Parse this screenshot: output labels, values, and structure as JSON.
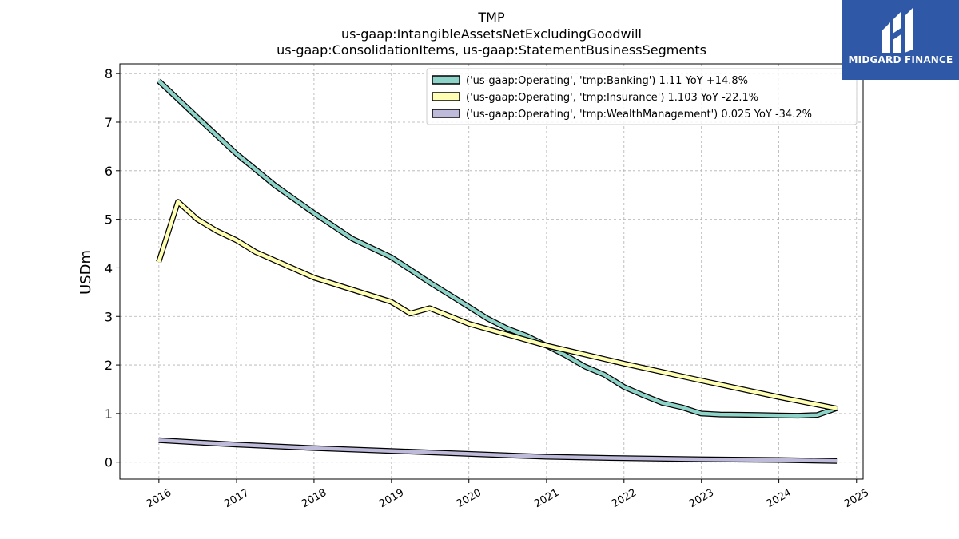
{
  "chart_data": {
    "type": "line",
    "title_lines": [
      "TMP",
      "us-gaap:IntangibleAssetsNetExcludingGoodwill",
      "us-gaap:ConsolidationItems, us-gaap:StatementBusinessSegments"
    ],
    "xlabel": "",
    "ylabel": "USDm",
    "xlim": [
      "2015-07-01",
      "2025-02-01"
    ],
    "ylim": [
      -0.35,
      8.2
    ],
    "x_ticks": [
      "2016",
      "2017",
      "2018",
      "2019",
      "2020",
      "2021",
      "2022",
      "2023",
      "2024",
      "2025"
    ],
    "y_ticks": [
      0,
      1,
      2,
      3,
      4,
      5,
      6,
      7,
      8
    ],
    "grid": true,
    "legend_position": "top-right",
    "series": [
      {
        "name": "('us-gaap:Operating', 'tmp:Banking') 1.11 YoY +14.8%",
        "color": "#8dd3c7",
        "points": [
          [
            "2015-12-31",
            7.85
          ],
          [
            "2016-06-30",
            7.1
          ],
          [
            "2016-12-31",
            6.35
          ],
          [
            "2017-06-30",
            5.7
          ],
          [
            "2017-12-31",
            5.13
          ],
          [
            "2018-06-30",
            4.6
          ],
          [
            "2018-12-31",
            4.22
          ],
          [
            "2019-06-30",
            3.7
          ],
          [
            "2019-12-31",
            3.2
          ],
          [
            "2020-03-31",
            2.95
          ],
          [
            "2020-06-30",
            2.75
          ],
          [
            "2020-09-30",
            2.6
          ],
          [
            "2020-12-31",
            2.4
          ],
          [
            "2021-03-31",
            2.2
          ],
          [
            "2021-06-30",
            1.97
          ],
          [
            "2021-09-30",
            1.8
          ],
          [
            "2021-12-31",
            1.55
          ],
          [
            "2022-03-31",
            1.38
          ],
          [
            "2022-06-30",
            1.22
          ],
          [
            "2022-09-30",
            1.13
          ],
          [
            "2022-12-31",
            1.0
          ],
          [
            "2023-03-31",
            0.98
          ],
          [
            "2023-06-30",
            0.975
          ],
          [
            "2023-09-30",
            0.97
          ],
          [
            "2023-12-31",
            0.96
          ],
          [
            "2024-03-31",
            0.955
          ],
          [
            "2024-06-30",
            0.97
          ],
          [
            "2024-09-30",
            1.11
          ]
        ]
      },
      {
        "name": "('us-gaap:Operating', 'tmp:Insurance') 1.103 YoY -22.1%",
        "color": "#ffffb3",
        "points": [
          [
            "2015-12-31",
            4.12
          ],
          [
            "2016-03-31",
            5.36
          ],
          [
            "2016-06-30",
            5.0
          ],
          [
            "2016-09-30",
            4.76
          ],
          [
            "2016-12-31",
            4.57
          ],
          [
            "2017-03-31",
            4.33
          ],
          [
            "2017-12-31",
            3.8
          ],
          [
            "2018-12-31",
            3.3
          ],
          [
            "2019-03-31",
            3.06
          ],
          [
            "2019-06-30",
            3.17
          ],
          [
            "2019-12-31",
            2.85
          ],
          [
            "2020-12-31",
            2.4
          ],
          [
            "2021-12-31",
            2.03
          ],
          [
            "2022-12-31",
            1.68
          ],
          [
            "2023-12-31",
            1.34
          ],
          [
            "2024-09-30",
            1.103
          ]
        ]
      },
      {
        "name": "('us-gaap:Operating', 'tmp:WealthManagement') 0.025 YoY -34.2%",
        "color": "#bebada",
        "points": [
          [
            "2015-12-31",
            0.45
          ],
          [
            "2016-12-31",
            0.36
          ],
          [
            "2017-12-31",
            0.29
          ],
          [
            "2018-12-31",
            0.23
          ],
          [
            "2019-12-31",
            0.17
          ],
          [
            "2020-12-31",
            0.11
          ],
          [
            "2021-12-31",
            0.08
          ],
          [
            "2022-12-31",
            0.06
          ],
          [
            "2023-12-31",
            0.045
          ],
          [
            "2024-09-30",
            0.025
          ]
        ]
      }
    ]
  },
  "logo": {
    "text": "MIDGARD FINANCE",
    "color": "#2f58a6"
  }
}
